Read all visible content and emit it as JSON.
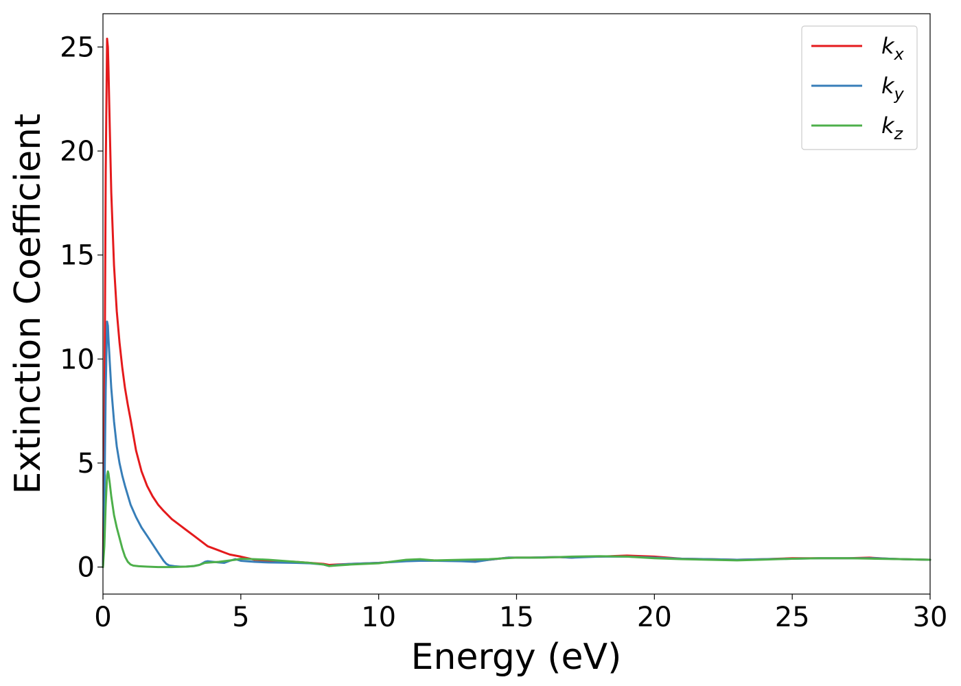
{
  "chart_data": {
    "type": "line",
    "xlabel": "Energy (eV)",
    "ylabel": "Extinction Coefficient",
    "xlim": [
      0,
      30
    ],
    "ylim": [
      -1.3,
      26.6
    ],
    "xticks": [
      0,
      5,
      10,
      15,
      20,
      25,
      30
    ],
    "yticks": [
      0,
      5,
      10,
      15,
      20,
      25
    ],
    "grid": false,
    "legend_position": "top-right",
    "series": [
      {
        "name": "k_x",
        "label_base": "k",
        "label_sub": "x",
        "color": "#e41a1c",
        "x": [
          0,
          0.05,
          0.1,
          0.15,
          0.18,
          0.2,
          0.25,
          0.3,
          0.4,
          0.5,
          0.6,
          0.7,
          0.8,
          0.9,
          1.0,
          1.2,
          1.4,
          1.6,
          1.8,
          2.0,
          2.2,
          2.5,
          2.8,
          3.0,
          3.3,
          3.6,
          3.8,
          4.0,
          4.2,
          4.4,
          4.6,
          4.8,
          5.0,
          5.5,
          6.0,
          6.5,
          7.0,
          7.5,
          8.0,
          8.2,
          8.5,
          9.0,
          10.0,
          11.0,
          11.5,
          12.0,
          13.0,
          13.5,
          14.0,
          14.7,
          15.5,
          16.5,
          17.0,
          17.5,
          18.0,
          19.0,
          20.0,
          21.0,
          22.0,
          23.0,
          24.0,
          25.0,
          26.0,
          27.0,
          27.8,
          28.5,
          29.0,
          30.0
        ],
        "y": [
          0,
          6.0,
          19.0,
          25.4,
          25.0,
          24.0,
          21.0,
          18.0,
          14.5,
          12.3,
          10.8,
          9.6,
          8.6,
          7.8,
          7.1,
          5.6,
          4.6,
          3.9,
          3.4,
          3.0,
          2.7,
          2.3,
          2.0,
          1.8,
          1.5,
          1.2,
          1.0,
          0.9,
          0.8,
          0.7,
          0.6,
          0.55,
          0.5,
          0.35,
          0.3,
          0.28,
          0.25,
          0.2,
          0.15,
          0.1,
          0.12,
          0.15,
          0.2,
          0.3,
          0.35,
          0.32,
          0.3,
          0.28,
          0.35,
          0.45,
          0.45,
          0.48,
          0.45,
          0.5,
          0.5,
          0.55,
          0.5,
          0.4,
          0.38,
          0.35,
          0.38,
          0.42,
          0.42,
          0.42,
          0.45,
          0.4,
          0.38,
          0.35
        ]
      },
      {
        "name": "k_y",
        "label_base": "k",
        "label_sub": "y",
        "color": "#377eb8",
        "x": [
          0,
          0.05,
          0.1,
          0.15,
          0.18,
          0.2,
          0.25,
          0.3,
          0.4,
          0.5,
          0.6,
          0.7,
          0.8,
          1.0,
          1.2,
          1.4,
          1.6,
          1.8,
          2.0,
          2.2,
          2.3,
          2.4,
          2.6,
          2.8,
          3.0,
          3.3,
          3.5,
          3.7,
          3.8,
          4.0,
          4.2,
          4.4,
          4.6,
          4.8,
          5.0,
          5.5,
          6.0,
          7.0,
          7.5,
          8.0,
          8.2,
          8.5,
          9.0,
          10.0,
          11.0,
          11.5,
          12.0,
          13.0,
          13.5,
          14.0,
          14.7,
          15.5,
          16.5,
          17.0,
          18.0,
          19.0,
          20.0,
          21.0,
          22.0,
          23.0,
          24.0,
          25.0,
          26.0,
          27.0,
          28.0,
          29.0,
          30.0
        ],
        "y": [
          0,
          3.0,
          8.5,
          11.8,
          11.6,
          11.0,
          9.8,
          8.6,
          7.0,
          5.8,
          5.0,
          4.4,
          3.9,
          3.0,
          2.4,
          1.9,
          1.5,
          1.1,
          0.7,
          0.3,
          0.15,
          0.08,
          0.04,
          0.02,
          0.02,
          0.05,
          0.1,
          0.25,
          0.28,
          0.25,
          0.22,
          0.2,
          0.3,
          0.38,
          0.3,
          0.25,
          0.22,
          0.2,
          0.18,
          0.12,
          0.05,
          0.1,
          0.15,
          0.2,
          0.28,
          0.3,
          0.3,
          0.28,
          0.25,
          0.35,
          0.45,
          0.45,
          0.48,
          0.45,
          0.5,
          0.5,
          0.45,
          0.4,
          0.38,
          0.35,
          0.38,
          0.4,
          0.42,
          0.42,
          0.42,
          0.38,
          0.35
        ]
      },
      {
        "name": "k_z",
        "label_base": "k",
        "label_sub": "z",
        "color": "#4daf4a",
        "x": [
          0,
          0.05,
          0.1,
          0.15,
          0.18,
          0.2,
          0.25,
          0.3,
          0.4,
          0.5,
          0.6,
          0.7,
          0.8,
          0.9,
          1.0,
          1.1,
          1.3,
          1.6,
          2.0,
          2.5,
          3.0,
          3.3,
          3.5,
          3.7,
          3.9,
          4.2,
          4.5,
          4.8,
          5.0,
          5.5,
          6.0,
          6.5,
          7.0,
          7.5,
          8.0,
          8.2,
          8.5,
          9.0,
          10.0,
          11.0,
          11.5,
          12.0,
          13.0,
          14.0,
          15.0,
          16.0,
          17.0,
          18.0,
          19.0,
          20.0,
          21.0,
          22.0,
          23.0,
          24.0,
          25.0,
          26.0,
          27.0,
          28.0,
          29.0,
          30.0
        ],
        "y": [
          0,
          1.0,
          3.0,
          4.4,
          4.6,
          4.5,
          4.0,
          3.4,
          2.5,
          1.9,
          1.4,
          0.9,
          0.5,
          0.25,
          0.12,
          0.07,
          0.04,
          0.02,
          0.0,
          0.0,
          0.02,
          0.05,
          0.1,
          0.2,
          0.22,
          0.25,
          0.3,
          0.35,
          0.4,
          0.38,
          0.35,
          0.3,
          0.25,
          0.2,
          0.12,
          0.05,
          0.08,
          0.12,
          0.18,
          0.35,
          0.38,
          0.32,
          0.35,
          0.38,
          0.45,
          0.45,
          0.5,
          0.52,
          0.5,
          0.42,
          0.38,
          0.35,
          0.32,
          0.36,
          0.4,
          0.42,
          0.42,
          0.4,
          0.38,
          0.35
        ]
      }
    ]
  }
}
